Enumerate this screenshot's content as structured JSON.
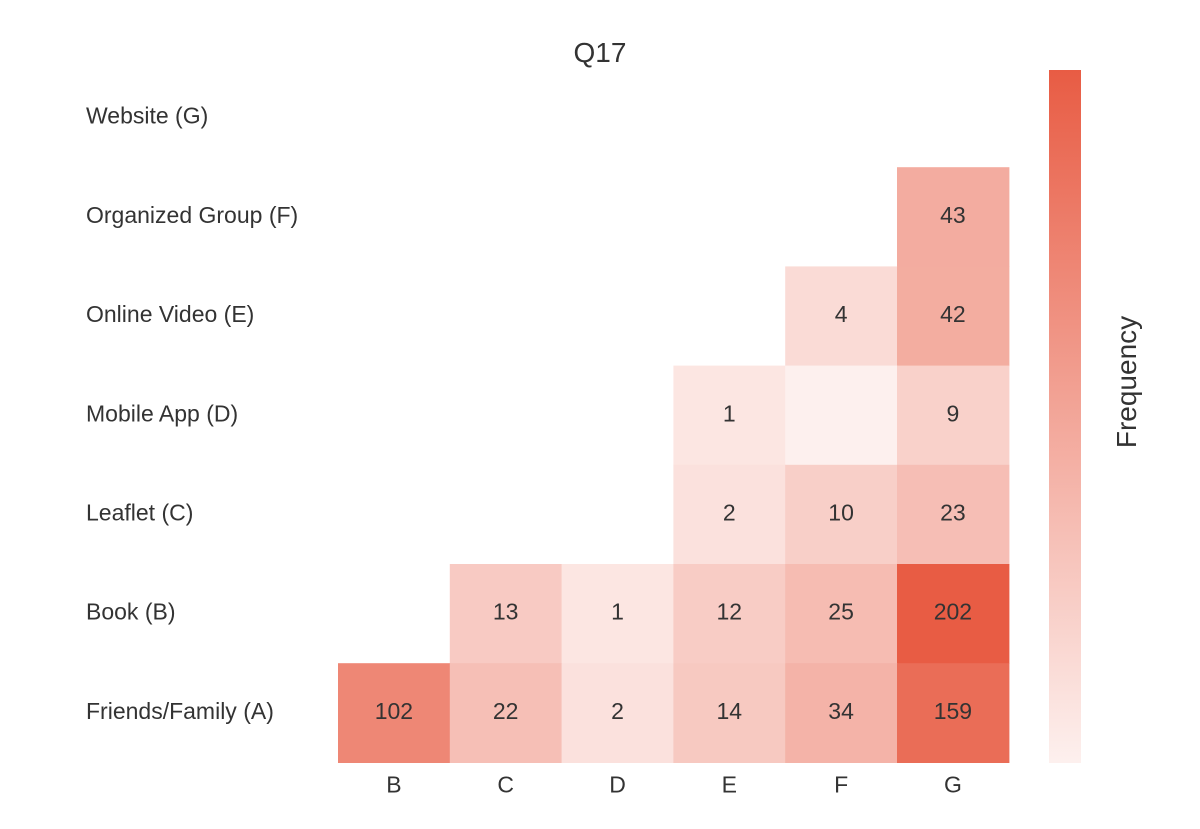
{
  "chart_data": {
    "type": "heatmap",
    "title": "Q17",
    "rows": [
      "Website (G)",
      "Organized Group (F)",
      "Online Video (E)",
      "Mobile App (D)",
      "Leaflet (C)",
      "Book (B)",
      "Friends/Family (A)"
    ],
    "columns": [
      "B",
      "C",
      "D",
      "E",
      "F",
      "G"
    ],
    "values": [
      [
        null,
        null,
        null,
        null,
        null,
        null
      ],
      [
        null,
        null,
        null,
        null,
        null,
        43
      ],
      [
        null,
        null,
        null,
        null,
        4,
        42
      ],
      [
        null,
        null,
        null,
        1,
        0,
        9
      ],
      [
        null,
        null,
        null,
        2,
        10,
        23
      ],
      [
        null,
        13,
        1,
        12,
        25,
        202
      ],
      [
        102,
        22,
        2,
        14,
        34,
        159
      ]
    ],
    "colorbar_label": "Frequency",
    "color_min": "#fdf0ee",
    "color_max": "#e85c44",
    "value_range": [
      0,
      202
    ],
    "grid": false,
    "legend_position": "right"
  }
}
